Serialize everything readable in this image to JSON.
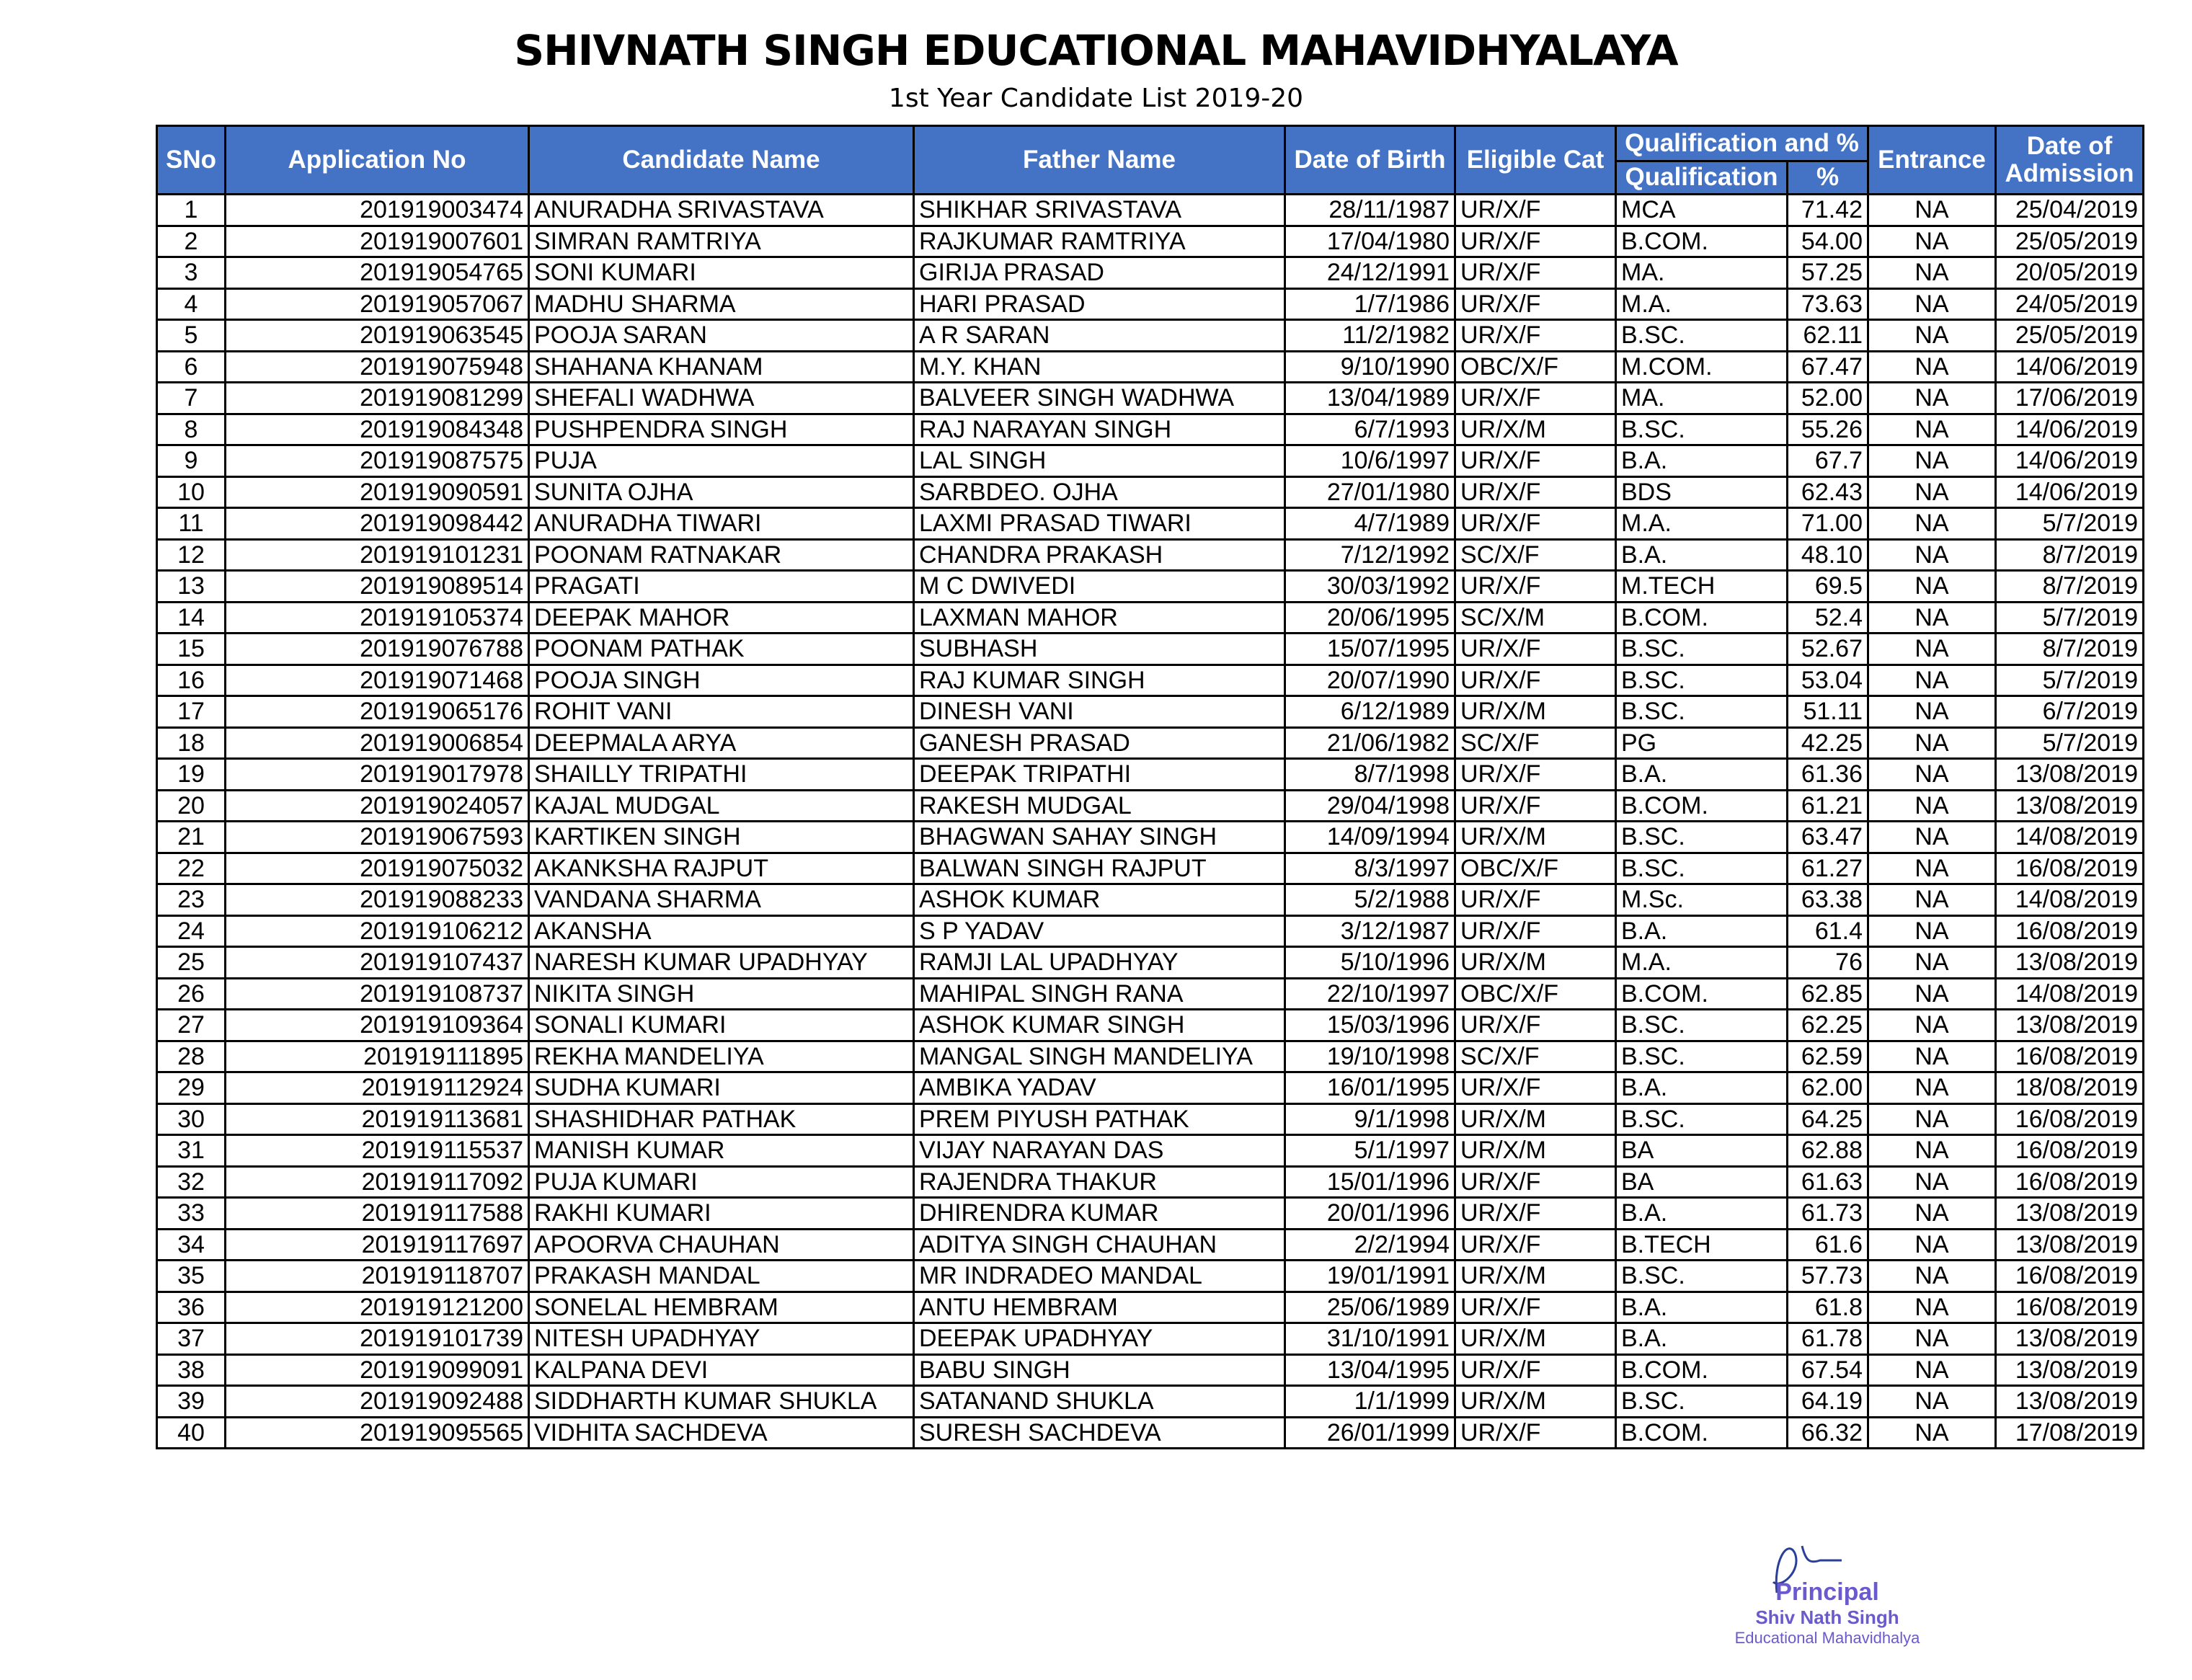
{
  "title": "SHIVNATH SINGH EDUCATIONAL MAHAVIDHYALAYA",
  "subtitle": "1st Year Candidate List 2019-20",
  "header": {
    "sno": "SNo",
    "application_no": "Application No",
    "candidate_name": "Candidate Name",
    "father_name": "Father Name",
    "dob": "Date of Birth",
    "eligible_cat": "Eligible Cat",
    "qualification_group": "Qualification and %",
    "qualification": "Qualification",
    "percent": "%",
    "entrance": "Entrance",
    "admission_date": "Date of Admission"
  },
  "rows": [
    [
      "1",
      "201919003474",
      "ANURADHA SRIVASTAVA",
      "SHIKHAR SRIVASTAVA",
      "28/11/1987",
      "UR/X/F",
      "MCA",
      "71.42",
      "NA",
      "25/04/2019"
    ],
    [
      "2",
      "201919007601",
      "SIMRAN RAMTRIYA",
      "RAJKUMAR RAMTRIYA",
      "17/04/1980",
      "UR/X/F",
      "B.COM.",
      "54.00",
      "NA",
      "25/05/2019"
    ],
    [
      "3",
      "201919054765",
      "SONI KUMARI",
      "GIRIJA PRASAD",
      "24/12/1991",
      "UR/X/F",
      "MA.",
      "57.25",
      "NA",
      "20/05/2019"
    ],
    [
      "4",
      "201919057067",
      "MADHU SHARMA",
      "HARI PRASAD",
      "1/7/1986",
      "UR/X/F",
      "M.A.",
      "73.63",
      "NA",
      "24/05/2019"
    ],
    [
      "5",
      "201919063545",
      "POOJA SARAN",
      "A R SARAN",
      "11/2/1982",
      "UR/X/F",
      "B.SC.",
      "62.11",
      "NA",
      "25/05/2019"
    ],
    [
      "6",
      "201919075948",
      "SHAHANA KHANAM",
      "M.Y. KHAN",
      "9/10/1990",
      "OBC/X/F",
      "M.COM.",
      "67.47",
      "NA",
      "14/06/2019"
    ],
    [
      "7",
      "201919081299",
      "SHEFALI WADHWA",
      "BALVEER SINGH WADHWA",
      "13/04/1989",
      "UR/X/F",
      "MA.",
      "52.00",
      "NA",
      "17/06/2019"
    ],
    [
      "8",
      "201919084348",
      "PUSHPENDRA SINGH",
      "RAJ NARAYAN SINGH",
      "6/7/1993",
      "UR/X/M",
      "B.SC.",
      "55.26",
      "NA",
      "14/06/2019"
    ],
    [
      "9",
      "201919087575",
      "PUJA",
      "LAL SINGH",
      "10/6/1997",
      "UR/X/F",
      "B.A.",
      "67.7",
      "NA",
      "14/06/2019"
    ],
    [
      "10",
      "201919090591",
      "SUNITA OJHA",
      "SARBDEO. OJHA",
      "27/01/1980",
      "UR/X/F",
      "BDS",
      "62.43",
      "NA",
      "14/06/2019"
    ],
    [
      "11",
      "201919098442",
      "ANURADHA TIWARI",
      "LAXMI PRASAD TIWARI",
      "4/7/1989",
      "UR/X/F",
      "M.A.",
      "71.00",
      "NA",
      "5/7/2019"
    ],
    [
      "12",
      "201919101231",
      "POONAM RATNAKAR",
      "CHANDRA PRAKASH",
      "7/12/1992",
      "SC/X/F",
      "B.A.",
      "48.10",
      "NA",
      "8/7/2019"
    ],
    [
      "13",
      "201919089514",
      "PRAGATI",
      "M C DWIVEDI",
      "30/03/1992",
      "UR/X/F",
      "M.TECH",
      "69.5",
      "NA",
      "8/7/2019"
    ],
    [
      "14",
      "201919105374",
      "DEEPAK MAHOR",
      "LAXMAN MAHOR",
      "20/06/1995",
      "SC/X/M",
      "B.COM.",
      "52.4",
      "NA",
      "5/7/2019"
    ],
    [
      "15",
      "201919076788",
      "POONAM PATHAK",
      "SUBHASH",
      "15/07/1995",
      "UR/X/F",
      "B.SC.",
      "52.67",
      "NA",
      "8/7/2019"
    ],
    [
      "16",
      "201919071468",
      "POOJA SINGH",
      "RAJ KUMAR SINGH",
      "20/07/1990",
      "UR/X/F",
      "B.SC.",
      "53.04",
      "NA",
      "5/7/2019"
    ],
    [
      "17",
      "201919065176",
      "ROHIT VANI",
      "DINESH VANI",
      "6/12/1989",
      "UR/X/M",
      "B.SC.",
      "51.11",
      "NA",
      "6/7/2019"
    ],
    [
      "18",
      "201919006854",
      "DEEPMALA ARYA",
      "GANESH PRASAD",
      "21/06/1982",
      "SC/X/F",
      "PG",
      "42.25",
      "NA",
      "5/7/2019"
    ],
    [
      "19",
      "201919017978",
      "SHAILLY TRIPATHI",
      "DEEPAK TRIPATHI",
      "8/7/1998",
      "UR/X/F",
      "B.A.",
      "61.36",
      "NA",
      "13/08/2019"
    ],
    [
      "20",
      "201919024057",
      "KAJAL MUDGAL",
      "RAKESH MUDGAL",
      "29/04/1998",
      "UR/X/F",
      "B.COM.",
      "61.21",
      "NA",
      "13/08/2019"
    ],
    [
      "21",
      "201919067593",
      "KARTIKEN SINGH",
      "BHAGWAN SAHAY SINGH",
      "14/09/1994",
      "UR/X/M",
      "B.SC.",
      "63.47",
      "NA",
      "14/08/2019"
    ],
    [
      "22",
      "201919075032",
      "AKANKSHA RAJPUT",
      "BALWAN SINGH RAJPUT",
      "8/3/1997",
      "OBC/X/F",
      "B.SC.",
      "61.27",
      "NA",
      "16/08/2019"
    ],
    [
      "23",
      "201919088233",
      "VANDANA SHARMA",
      "ASHOK KUMAR",
      "5/2/1988",
      "UR/X/F",
      "M.Sc.",
      "63.38",
      "NA",
      "14/08/2019"
    ],
    [
      "24",
      "201919106212",
      "AKANSHA",
      "S P YADAV",
      "3/12/1987",
      "UR/X/F",
      "B.A.",
      "61.4",
      "NA",
      "16/08/2019"
    ],
    [
      "25",
      "201919107437",
      "NARESH KUMAR UPADHYAY",
      "RAMJI LAL UPADHYAY",
      "5/10/1996",
      "UR/X/M",
      "M.A.",
      "76",
      "NA",
      "13/08/2019"
    ],
    [
      "26",
      "201919108737",
      "NIKITA SINGH",
      "MAHIPAL SINGH RANA",
      "22/10/1997",
      "OBC/X/F",
      "B.COM.",
      "62.85",
      "NA",
      "14/08/2019"
    ],
    [
      "27",
      "201919109364",
      "SONALI KUMARI",
      "ASHOK KUMAR SINGH",
      "15/03/1996",
      "UR/X/F",
      "B.SC.",
      "62.25",
      "NA",
      "13/08/2019"
    ],
    [
      "28",
      "201919111895",
      "REKHA MANDELIYA",
      "MANGAL SINGH MANDELIYA",
      "19/10/1998",
      "SC/X/F",
      "B.SC.",
      "62.59",
      "NA",
      "16/08/2019"
    ],
    [
      "29",
      "201919112924",
      "SUDHA KUMARI",
      "AMBIKA YADAV",
      "16/01/1995",
      "UR/X/F",
      "B.A.",
      "62.00",
      "NA",
      "18/08/2019"
    ],
    [
      "30",
      "201919113681",
      "SHASHIDHAR PATHAK",
      "PREM PIYUSH PATHAK",
      "9/1/1998",
      "UR/X/M",
      "B.SC.",
      "64.25",
      "NA",
      "16/08/2019"
    ],
    [
      "31",
      "201919115537",
      "MANISH KUMAR",
      "VIJAY NARAYAN DAS",
      "5/1/1997",
      "UR/X/M",
      "BA",
      "62.88",
      "NA",
      "16/08/2019"
    ],
    [
      "32",
      "201919117092",
      "PUJA KUMARI",
      "RAJENDRA THAKUR",
      "15/01/1996",
      "UR/X/F",
      "BA",
      "61.63",
      "NA",
      "16/08/2019"
    ],
    [
      "33",
      "201919117588",
      "RAKHI KUMARI",
      "DHIRENDRA KUMAR",
      "20/01/1996",
      "UR/X/F",
      "B.A.",
      "61.73",
      "NA",
      "13/08/2019"
    ],
    [
      "34",
      "201919117697",
      "APOORVA CHAUHAN",
      "ADITYA SINGH CHAUHAN",
      "2/2/1994",
      "UR/X/F",
      "B.TECH",
      "61.6",
      "NA",
      "13/08/2019"
    ],
    [
      "35",
      "201919118707",
      "PRAKASH MANDAL",
      "MR INDRADEO MANDAL",
      "19/01/1991",
      "UR/X/M",
      "B.SC.",
      "57.73",
      "NA",
      "16/08/2019"
    ],
    [
      "36",
      "201919121200",
      "SONELAL HEMBRAM",
      "ANTU HEMBRAM",
      "25/06/1989",
      "UR/X/F",
      "B.A.",
      "61.8",
      "NA",
      "16/08/2019"
    ],
    [
      "37",
      "201919101739",
      "NITESH UPADHYAY",
      "DEEPAK UPADHYAY",
      "31/10/1991",
      "UR/X/M",
      "B.A.",
      "61.78",
      "NA",
      "13/08/2019"
    ],
    [
      "38",
      "201919099091",
      "KALPANA DEVI",
      "BABU SINGH",
      "13/04/1995",
      "UR/X/F",
      "B.COM.",
      "67.54",
      "NA",
      "13/08/2019"
    ],
    [
      "39",
      "201919092488",
      "SIDDHARTH KUMAR SHUKLA",
      "SATANAND SHUKLA",
      "1/1/1999",
      "UR/X/M",
      "B.SC.",
      "64.19",
      "NA",
      "13/08/2019"
    ],
    [
      "40",
      "201919095565",
      "VIDHITA SACHDEVA",
      "SURESH SACHDEVA",
      "26/01/1999",
      "UR/X/F",
      "B.COM.",
      "66.32",
      "NA",
      "17/08/2019"
    ]
  ],
  "stamp": {
    "line1": "Principal",
    "line2": "Shiv Nath Singh",
    "line3": "Educational Mahavidhalya",
    "ink_color": "#6a5acd"
  },
  "colors": {
    "header_bg": "#4472c4",
    "header_text": "#ffffff"
  }
}
